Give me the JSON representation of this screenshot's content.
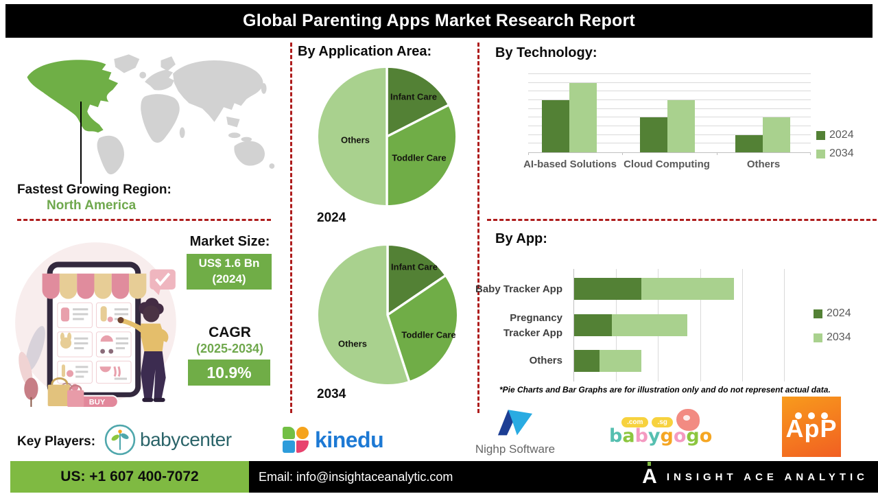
{
  "header": {
    "title": "Global Parenting Apps Market Research Report"
  },
  "region": {
    "label": "Fastest Growing Region:",
    "value": "North America"
  },
  "market": {
    "size_label": "Market Size:",
    "size_value": "US$ 1.6 Bn",
    "size_year": "(2024)",
    "cagr_label": "CAGR",
    "cagr_period": "(2025-2034)",
    "cagr_value": "10.9%"
  },
  "illustration": {
    "buy_label": "BUY"
  },
  "sections": {
    "application": {
      "title": "By Application Area:"
    },
    "technology": {
      "title": "By Technology:"
    },
    "app": {
      "title": "By App:"
    }
  },
  "footnote": "*Pie Charts and Bar Graphs are for illustration only and do not represent actual data.",
  "key_players": {
    "label": "Key Players:"
  },
  "logos": {
    "babycenter": {
      "text": "babycenter"
    },
    "kinedu": {
      "text": "kinedu"
    },
    "nighp": {
      "text": "Nighp Software"
    },
    "babygogo": {
      "tags": [
        ".com",
        ".sg"
      ],
      "letters": [
        {
          "ch": "b",
          "color": "#56BFB0"
        },
        {
          "ch": "a",
          "color": "#8CC63F"
        },
        {
          "ch": "b",
          "color": "#F49AC1"
        },
        {
          "ch": "y",
          "color": "#56BFB0"
        },
        {
          "ch": "g",
          "color": "#F5A623"
        },
        {
          "ch": "o",
          "color": "#F49AC1"
        },
        {
          "ch": "g",
          "color": "#8CC63F"
        },
        {
          "ch": "o",
          "color": "#F5A623"
        }
      ]
    },
    "app": {
      "text": "ApP"
    },
    "insight": {
      "mark": "A",
      "text": "INSIGHT ACE ANALYTIC"
    }
  },
  "footer": {
    "phone": "US: +1 607 400-7072",
    "email": "Email: info@insightaceanalytic.com"
  },
  "colors": {
    "accent_dark_green": "#538135",
    "accent_green": "#70AD47",
    "accent_light_green": "#A9D18E",
    "footer_green": "#7FBA42",
    "dashed_red": "#AE1C1C",
    "header_black": "#000000",
    "map_gray": "#D2D2D2"
  },
  "chart_data": [
    {
      "id": "application_area_2024",
      "type": "pie",
      "title": "2024",
      "labels": [
        "Infant Care",
        "Toddler Care",
        "Others"
      ],
      "values": [
        17.5,
        32.5,
        50
      ],
      "colors": [
        "#538135",
        "#70AD47",
        "#A9D18E"
      ],
      "legend_position": "none",
      "note": "illustrative only"
    },
    {
      "id": "application_area_2034",
      "type": "pie",
      "title": "2034",
      "labels": [
        "Infant Care",
        "Toddler Care",
        "Others"
      ],
      "values": [
        15.5,
        29.5,
        55
      ],
      "colors": [
        "#538135",
        "#70AD47",
        "#A9D18E"
      ],
      "legend_position": "none",
      "note": "illustrative only"
    },
    {
      "id": "by_technology",
      "type": "bar",
      "title": "By Technology:",
      "categories": [
        "AI-based Solutions",
        "Cloud Computing",
        "Others"
      ],
      "series": [
        {
          "name": "2024",
          "color": "#538135",
          "values": [
            60,
            40,
            20
          ]
        },
        {
          "name": "2034",
          "color": "#A9D18E",
          "values": [
            80,
            60,
            40
          ]
        }
      ],
      "ylim": [
        0,
        90
      ],
      "gridlines": 9,
      "grid": "horizontal",
      "legend_position": "right",
      "note": "illustrative only, no value axis labels shown"
    },
    {
      "id": "by_app",
      "type": "stacked-horizontal-bar",
      "title": "By App:",
      "categories": [
        "Baby Tracker App",
        "Pregnancy Tracker App",
        "Others"
      ],
      "series": [
        {
          "name": "2024",
          "color": "#538135",
          "values": [
            1.6,
            0.9,
            0.6
          ]
        },
        {
          "name": "2034",
          "color": "#A9D18E",
          "values": [
            2.2,
            1.8,
            1.0
          ]
        }
      ],
      "xlim": [
        0,
        5
      ],
      "gridlines": 5,
      "grid": "vertical",
      "legend_position": "right",
      "note": "illustrative only, no value axis labels shown"
    }
  ]
}
